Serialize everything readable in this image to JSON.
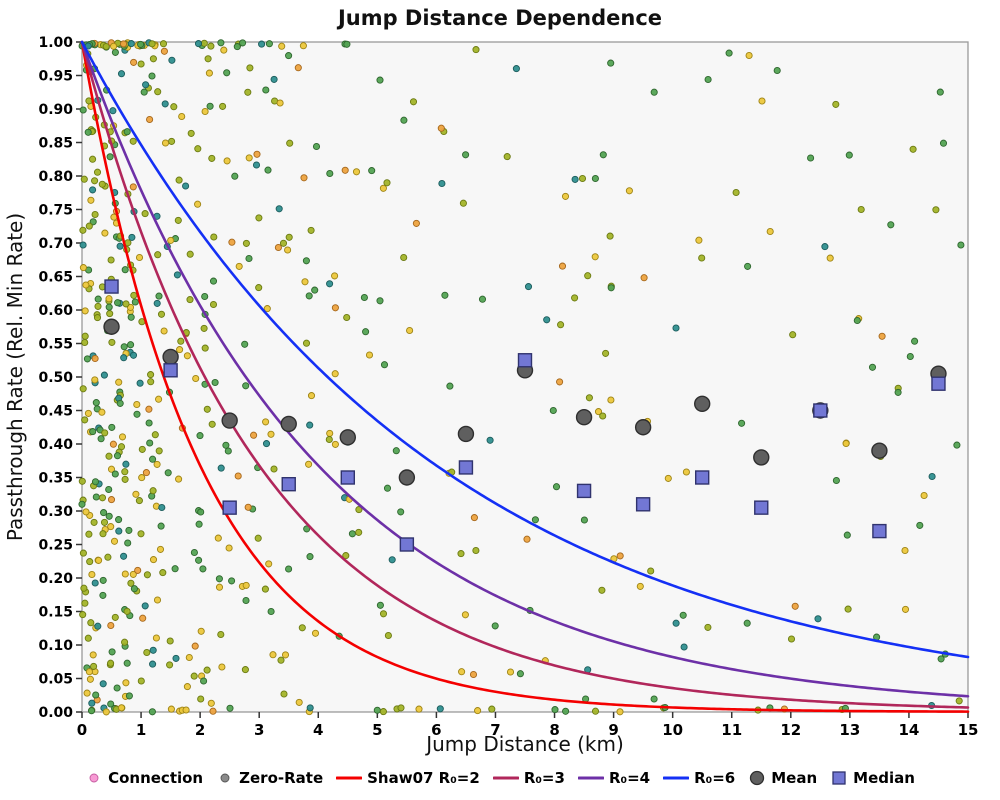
{
  "chart_data": {
    "type": "scatter",
    "title": "Jump Distance Dependence",
    "xlabel": "Jump Distance (km)",
    "ylabel": "Passthrough Rate (Rel. Min Rate)",
    "xlim": [
      0,
      15
    ],
    "ylim": [
      0,
      1
    ],
    "x_tick_labels": [
      "0",
      "1",
      "2",
      "3",
      "4",
      "5",
      "6",
      "7",
      "8",
      "9",
      "10",
      "11",
      "12",
      "13",
      "14",
      "15"
    ],
    "y_tick_step": 0.05,
    "y_tick_labels": [
      "0.00",
      "0.05",
      "0.10",
      "0.15",
      "0.20",
      "0.25",
      "0.30",
      "0.35",
      "0.40",
      "0.45",
      "0.50",
      "0.55",
      "0.60",
      "0.65",
      "0.70",
      "0.75",
      "0.80",
      "0.85",
      "0.90",
      "0.95",
      "1.00"
    ],
    "grid": false,
    "plot_background": "#f7f7f7",
    "frame_color": "#9a9a9a",
    "curves": {
      "model": "y = exp(-x / R0)",
      "series": [
        {
          "name": "Shaw07 R₀=2",
          "r0": 2,
          "color": "#f40000"
        },
        {
          "name": "R₀=3",
          "r0": 3,
          "color": "#b1275b"
        },
        {
          "name": "R₀=4",
          "r0": 4,
          "color": "#6d30a7"
        },
        {
          "name": "R₀=6",
          "r0": 6,
          "color": "#1430f5"
        }
      ]
    },
    "mean_points": {
      "name": "Mean",
      "fill": "#5f5f5f",
      "stroke": "#2f2f2f",
      "points": [
        [
          0.5,
          0.575
        ],
        [
          1.5,
          0.53
        ],
        [
          2.5,
          0.435
        ],
        [
          3.5,
          0.43
        ],
        [
          4.5,
          0.41
        ],
        [
          5.5,
          0.35
        ],
        [
          6.5,
          0.415
        ],
        [
          7.5,
          0.51
        ],
        [
          8.5,
          0.44
        ],
        [
          9.5,
          0.425
        ],
        [
          10.5,
          0.46
        ],
        [
          11.5,
          0.38
        ],
        [
          12.5,
          0.45
        ],
        [
          13.5,
          0.39
        ],
        [
          14.5,
          0.505
        ]
      ]
    },
    "median_points": {
      "name": "Median",
      "fill": "#7277d4",
      "stroke": "#30336e",
      "points": [
        [
          0.5,
          0.635
        ],
        [
          1.5,
          0.51
        ],
        [
          2.5,
          0.305
        ],
        [
          3.5,
          0.34
        ],
        [
          4.5,
          0.35
        ],
        [
          5.5,
          0.25
        ],
        [
          6.5,
          0.365
        ],
        [
          7.5,
          0.525
        ],
        [
          8.5,
          0.33
        ],
        [
          9.5,
          0.31
        ],
        [
          10.5,
          0.35
        ],
        [
          11.5,
          0.305
        ],
        [
          12.5,
          0.45
        ],
        [
          13.5,
          0.27
        ],
        [
          14.5,
          0.49
        ]
      ]
    },
    "scatter": {
      "note": "dense random cloud of small connection samples, densest near x=0, thinning toward x=15, with rows hugging y=1.0 and y=0.0",
      "seed": 1337,
      "point_radius": 3.1,
      "palette": [
        {
          "fill": "#a3b429",
          "stroke": "#6b7a12",
          "weight": 0.28
        },
        {
          "fill": "#53a353",
          "stroke": "#2e662e",
          "weight": 0.27
        },
        {
          "fill": "#ecc73c",
          "stroke": "#9e8415",
          "weight": 0.25
        },
        {
          "fill": "#2f8f8f",
          "stroke": "#1c5c5c",
          "weight": 0.12
        },
        {
          "fill": "#eda33f",
          "stroke": "#a5671c",
          "weight": 0.08
        }
      ],
      "groups": [
        {
          "n": 270,
          "x": {
            "dist": "exp",
            "scale": 1.1
          },
          "y": {
            "dist": "uniform"
          }
        },
        {
          "n": 310,
          "x": {
            "dist": "pow",
            "exponent": 1.5
          },
          "y": {
            "dist": "uniform"
          }
        },
        {
          "n": 45,
          "x": {
            "dist": "exp",
            "scale": 2.0
          },
          "y": {
            "dist": "band",
            "lo": 0.993,
            "hi": 1.0
          }
        },
        {
          "n": 35,
          "x": {
            "dist": "pow",
            "exponent": 1.4
          },
          "y": {
            "dist": "band",
            "lo": 0.0,
            "hi": 0.007
          }
        }
      ]
    },
    "legend": [
      {
        "label": "Connection",
        "marker": "dot",
        "fill": "#f79ad4",
        "stroke": "#c45ba0"
      },
      {
        "label": "Zero-Rate",
        "marker": "dot",
        "fill": "#8a8a8a",
        "stroke": "#555555"
      },
      {
        "label": "Shaw07 R₀=2",
        "marker": "line",
        "fill": "#f40000"
      },
      {
        "label": "R₀=3",
        "marker": "line",
        "fill": "#b1275b"
      },
      {
        "label": "R₀=4",
        "marker": "line",
        "fill": "#6d30a7"
      },
      {
        "label": "R₀=6",
        "marker": "line",
        "fill": "#1430f5"
      },
      {
        "label": "Mean",
        "marker": "circle",
        "fill": "#5f5f5f",
        "stroke": "#2f2f2f"
      },
      {
        "label": "Median",
        "marker": "square",
        "fill": "#7277d4",
        "stroke": "#30336e"
      }
    ]
  }
}
